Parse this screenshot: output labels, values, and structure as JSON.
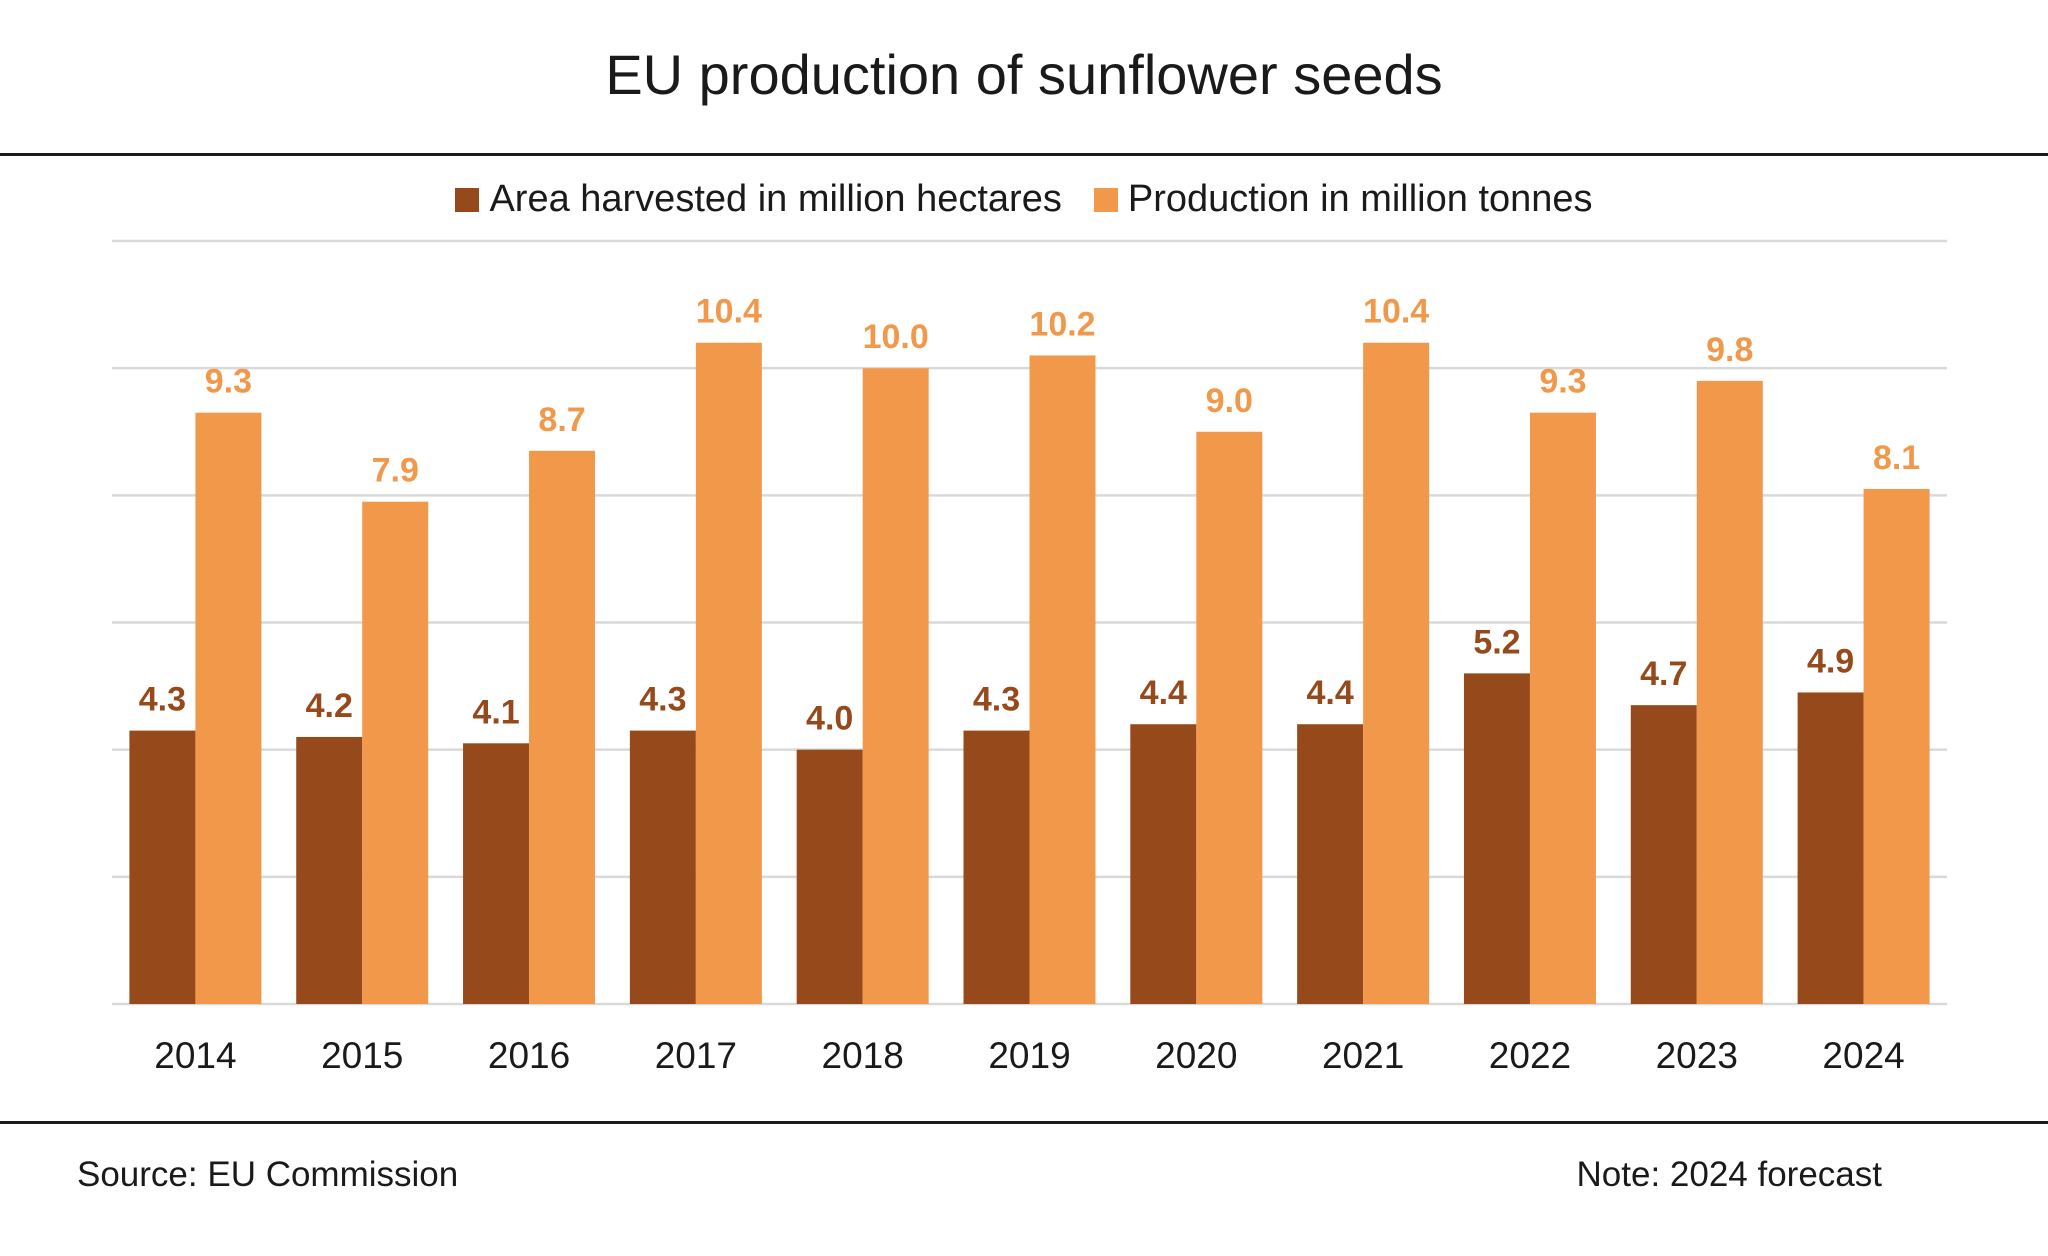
{
  "chart_data": {
    "type": "bar",
    "title": "EU production of sunflower seeds",
    "categories": [
      "2014",
      "2015",
      "2016",
      "2017",
      "2018",
      "2019",
      "2020",
      "2021",
      "2022",
      "2023",
      "2024"
    ],
    "series": [
      {
        "name": "Area harvested in million hectares",
        "color": "#96491a",
        "values": [
          4.3,
          4.2,
          4.1,
          4.3,
          4.0,
          4.3,
          4.4,
          4.4,
          5.2,
          4.7,
          4.9
        ]
      },
      {
        "name": "Production in million tonnes",
        "color": "#f2984a",
        "values": [
          9.3,
          7.9,
          8.7,
          10.4,
          10.0,
          10.2,
          9.0,
          10.4,
          9.3,
          9.8,
          8.1
        ]
      }
    ],
    "ylim": [
      0,
      12
    ],
    "gridlines": [
      0,
      2,
      4,
      6,
      8,
      10,
      12
    ],
    "xlabel": "",
    "ylabel": "",
    "legend": "top-center",
    "grid": true
  },
  "footer": {
    "source": "Source: EU Commission",
    "note": "Note: 2024 forecast"
  },
  "colors": {
    "grid": "#d9d9d9",
    "axis_text": "#1a1a1a",
    "rule": "#1a1a1a"
  }
}
